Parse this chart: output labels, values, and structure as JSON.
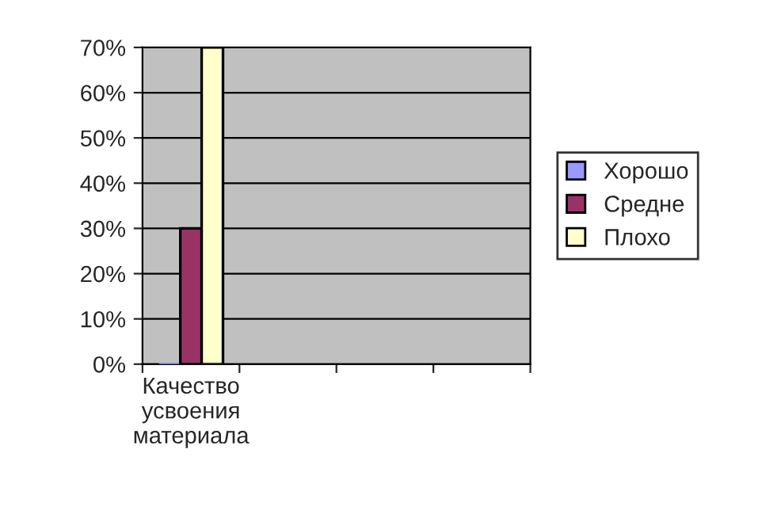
{
  "chart_data": {
    "type": "bar",
    "categories": [
      "Качество\nусвоения\nматериала",
      null,
      null,
      null
    ],
    "series": [
      {
        "name": "Хорошо",
        "color": "#9999ff",
        "values": [
          0,
          null,
          null,
          null
        ]
      },
      {
        "name": "Средне",
        "color": "#993366",
        "values": [
          30,
          null,
          null,
          null
        ]
      },
      {
        "name": "Плохо",
        "color": "#ffffcc",
        "values": [
          70,
          null,
          null,
          null
        ]
      }
    ],
    "ylim": [
      0,
      70
    ],
    "yticks": [
      {
        "value": 0,
        "label": "0%"
      },
      {
        "value": 10,
        "label": "10%"
      },
      {
        "value": 20,
        "label": "20%"
      },
      {
        "value": 30,
        "label": "30%"
      },
      {
        "value": 40,
        "label": "40%"
      },
      {
        "value": 50,
        "label": "50%"
      },
      {
        "value": 60,
        "label": "60%"
      },
      {
        "value": 70,
        "label": "70%"
      }
    ],
    "grid": "y",
    "legend": "right"
  }
}
